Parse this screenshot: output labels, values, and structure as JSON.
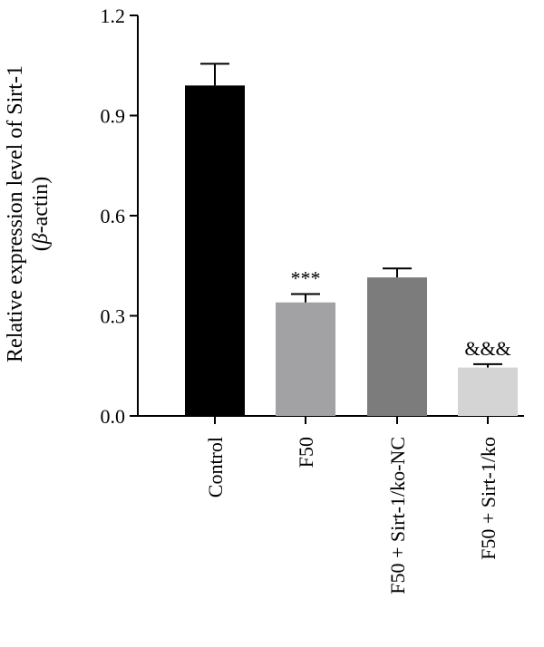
{
  "chart_data": {
    "type": "bar",
    "title": "",
    "xlabel": "",
    "ylabel_line1": "Relative expression level of Sirt-1",
    "ylabel_line2_pre": "(",
    "ylabel_line2_italic": "β",
    "ylabel_line2_post": "-actin)",
    "ylim": [
      0,
      1.2
    ],
    "yticks": [
      "0.0",
      "0.3",
      "0.6",
      "0.9",
      "1.2"
    ],
    "grid": false,
    "categories": [
      "Control",
      "F50",
      "F50 + Sirt-1/ko-NC",
      "F50 + Sirt-1/ko"
    ],
    "values": [
      0.99,
      0.34,
      0.415,
      0.145
    ],
    "errors": [
      0.065,
      0.025,
      0.027,
      0.01
    ],
    "colors": [
      "#000000",
      "#a2a2a5",
      "#7c7c7c",
      "#d4d4d4"
    ],
    "annotations": [
      "",
      "***",
      "",
      "&&&"
    ]
  }
}
